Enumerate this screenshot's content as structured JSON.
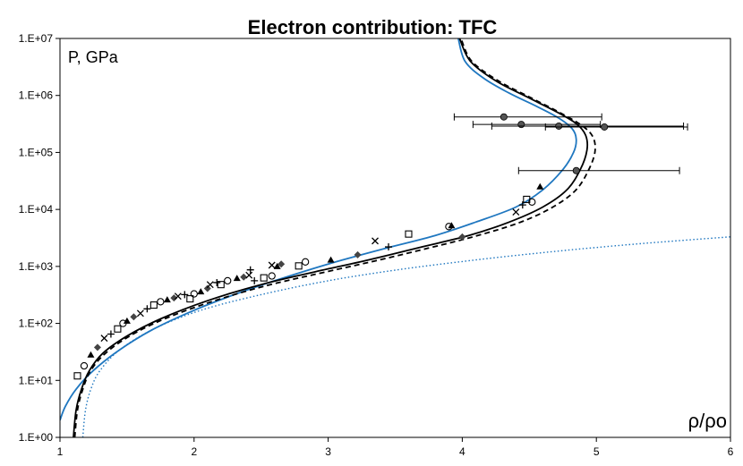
{
  "chart_data": {
    "type": "scatter",
    "title": "Electron contribution: TFC",
    "ylabel": "P, GPa",
    "xlabel": "ρ/ρo",
    "x_ticks": [
      "1",
      "2",
      "3",
      "4",
      "5",
      "6"
    ],
    "y_ticks": [
      "1.E+00",
      "1.E+01",
      "1.E+02",
      "1.E+03",
      "1.E+04",
      "1.E+05",
      "1.E+06",
      "1.E+07"
    ],
    "xlim": [
      1,
      6
    ],
    "ylim": [
      1,
      10000000
    ],
    "y_scale": "log",
    "grid": false,
    "legend": "none",
    "series": [
      {
        "style": "blue-solid",
        "color": "#1f77c0",
        "x": [
          1.0,
          1.04,
          1.12,
          1.25,
          1.45,
          1.7,
          2.0,
          2.3,
          2.6,
          3.0,
          3.4,
          3.8,
          4.1,
          4.4,
          4.6,
          4.75,
          4.83,
          4.85,
          4.82,
          4.72,
          4.55,
          4.35,
          4.16,
          4.02,
          3.97
        ],
        "y": [
          2,
          3.5,
          7,
          15,
          35,
          80,
          170,
          320,
          560,
          1100,
          2000,
          3500,
          6000,
          11000,
          22000,
          50000,
          100000,
          170000,
          260000,
          400000,
          650000,
          1100000,
          2000000,
          4000000,
          10000000
        ]
      },
      {
        "style": "black-solid",
        "color": "#000000",
        "x": [
          1.1,
          1.12,
          1.16,
          1.22,
          1.32,
          1.5,
          1.75,
          2.1,
          2.5,
          2.9,
          3.3,
          3.7,
          4.05,
          4.35,
          4.6,
          4.78,
          4.88,
          4.93,
          4.92,
          4.85,
          4.7,
          4.48,
          4.25,
          4.06,
          3.98
        ],
        "y": [
          1,
          3,
          7,
          15,
          30,
          60,
          120,
          250,
          480,
          800,
          1300,
          2200,
          3500,
          6000,
          11000,
          22000,
          50000,
          110000,
          200000,
          320000,
          520000,
          950000,
          1800000,
          4000000,
          10000000
        ]
      },
      {
        "style": "black-dashed",
        "color": "#000000",
        "x": [
          1.11,
          1.13,
          1.17,
          1.23,
          1.34,
          1.52,
          1.78,
          2.13,
          2.54,
          2.95,
          3.35,
          3.75,
          4.1,
          4.42,
          4.66,
          4.84,
          4.94,
          4.99,
          4.97,
          4.88,
          4.72,
          4.5,
          4.27,
          4.07,
          3.99
        ],
        "y": [
          1,
          3,
          7,
          15,
          30,
          60,
          120,
          240,
          460,
          770,
          1250,
          2100,
          3400,
          5800,
          10500,
          21000,
          48000,
          105000,
          195000,
          310000,
          510000,
          940000,
          1800000,
          4000000,
          10000000
        ]
      },
      {
        "style": "blue-dotted",
        "color": "#1f77c0",
        "x": [
          1.17,
          1.19,
          1.23,
          1.3,
          1.45,
          1.7,
          2.05,
          2.5,
          3.0,
          3.5,
          4.0,
          4.5,
          5.0,
          5.5,
          6.0
        ],
        "y": [
          1,
          3,
          7,
          15,
          35,
          80,
          170,
          320,
          560,
          860,
          1220,
          1650,
          2150,
          2700,
          3300
        ]
      }
    ],
    "points": {
      "x": [
        1.13,
        1.18,
        1.23,
        1.28,
        1.33,
        1.38,
        1.43,
        1.47,
        1.5,
        1.55,
        1.6,
        1.65,
        1.7,
        1.75,
        1.8,
        1.85,
        1.88,
        1.93,
        1.97,
        2.0,
        2.05,
        2.1,
        2.12,
        2.17,
        2.2,
        2.25,
        2.32,
        2.37,
        2.41,
        2.45,
        2.52,
        2.58,
        2.62,
        2.65,
        2.58,
        2.42,
        2.78,
        2.83,
        3.02,
        3.22,
        3.35,
        3.45,
        3.6,
        3.9,
        3.92,
        4.0,
        4.4,
        4.45,
        4.48,
        4.52,
        4.58
      ],
      "y": [
        12,
        18,
        28,
        38,
        55,
        65,
        80,
        100,
        110,
        130,
        150,
        180,
        210,
        240,
        260,
        280,
        300,
        320,
        270,
        330,
        360,
        410,
        480,
        520,
        480,
        560,
        620,
        650,
        700,
        560,
        630,
        680,
        1000,
        1100,
        1050,
        870,
        1020,
        1200,
        1300,
        1600,
        2800,
        2200,
        3700,
        5000,
        5200,
        3300,
        9000,
        12000,
        15000,
        13500,
        25000
      ]
    },
    "error_points": {
      "x": [
        4.31,
        4.44,
        4.72,
        5.06,
        4.85
      ],
      "y": [
        420000,
        310000,
        290000,
        280000,
        48000
      ],
      "xerr_lo": [
        3.94,
        4.08,
        4.22,
        4.62,
        4.42
      ],
      "xerr_hi": [
        5.04,
        5.03,
        5.65,
        5.68,
        5.62
      ]
    }
  }
}
